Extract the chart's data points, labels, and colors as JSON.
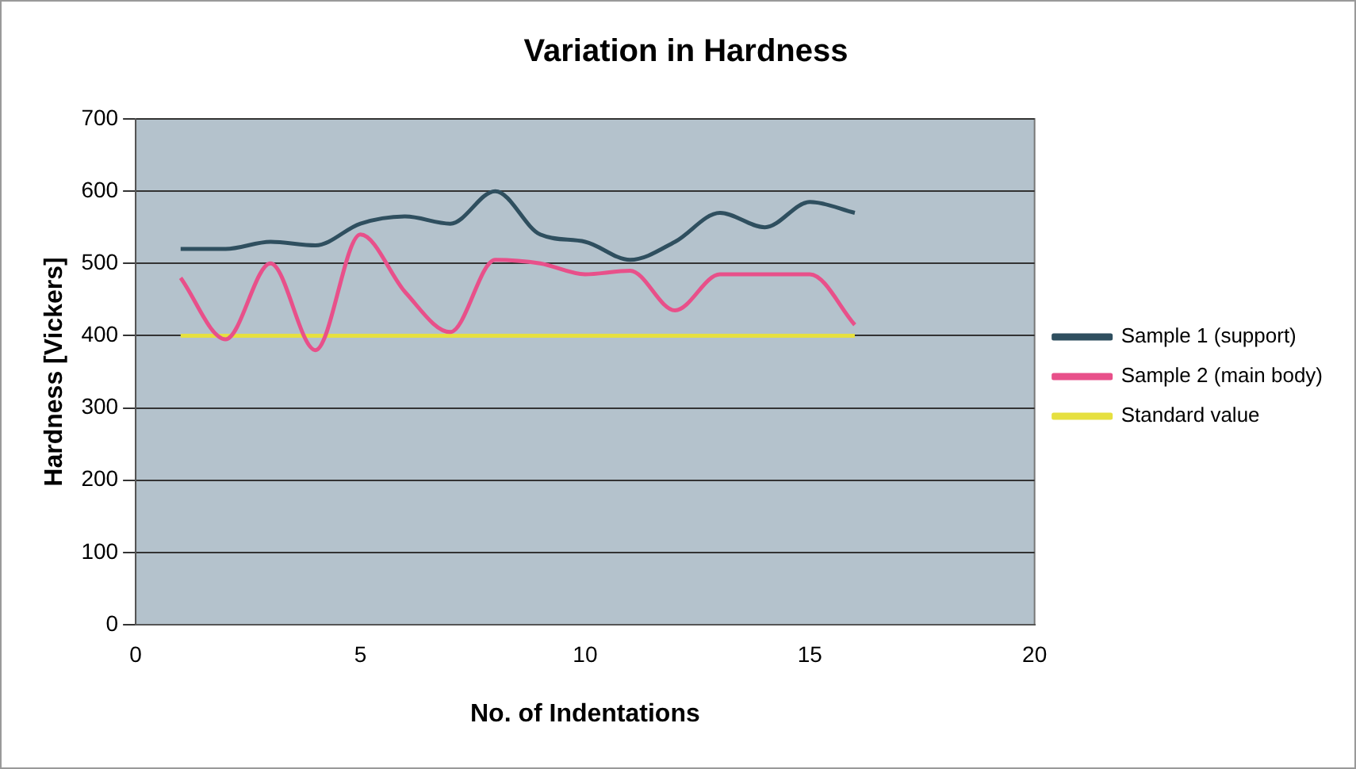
{
  "chart_data": {
    "type": "line",
    "title": "Variation in Hardness",
    "xlabel": "No. of Indentations",
    "ylabel": "Hardness [Vickers]",
    "x": [
      1,
      2,
      3,
      4,
      5,
      6,
      7,
      8,
      9,
      10,
      11,
      12,
      13,
      14,
      15,
      16
    ],
    "series": [
      {
        "name": "Sample 1 (support)",
        "color": "#2f4f5f",
        "values": [
          520,
          520,
          530,
          525,
          555,
          565,
          555,
          600,
          540,
          530,
          505,
          530,
          570,
          550,
          585,
          570
        ]
      },
      {
        "name": "Sample 2 (main body)",
        "color": "#e8508a",
        "values": [
          480,
          395,
          500,
          380,
          540,
          460,
          405,
          505,
          500,
          485,
          490,
          435,
          485,
          485,
          485,
          415
        ]
      },
      {
        "name": "Standard value",
        "color": "#e6e040",
        "values": [
          400,
          400,
          400,
          400,
          400,
          400,
          400,
          400,
          400,
          400,
          400,
          400,
          400,
          400,
          400,
          400
        ]
      }
    ],
    "xlim": [
      0,
      20
    ],
    "xticks": [
      0,
      5,
      10,
      15,
      20
    ],
    "ylim": [
      0,
      700
    ],
    "yticks": [
      0,
      100,
      200,
      300,
      400,
      500,
      600,
      700
    ],
    "grid": "y",
    "legend": "right",
    "marker": "none",
    "line_style": "solid"
  }
}
